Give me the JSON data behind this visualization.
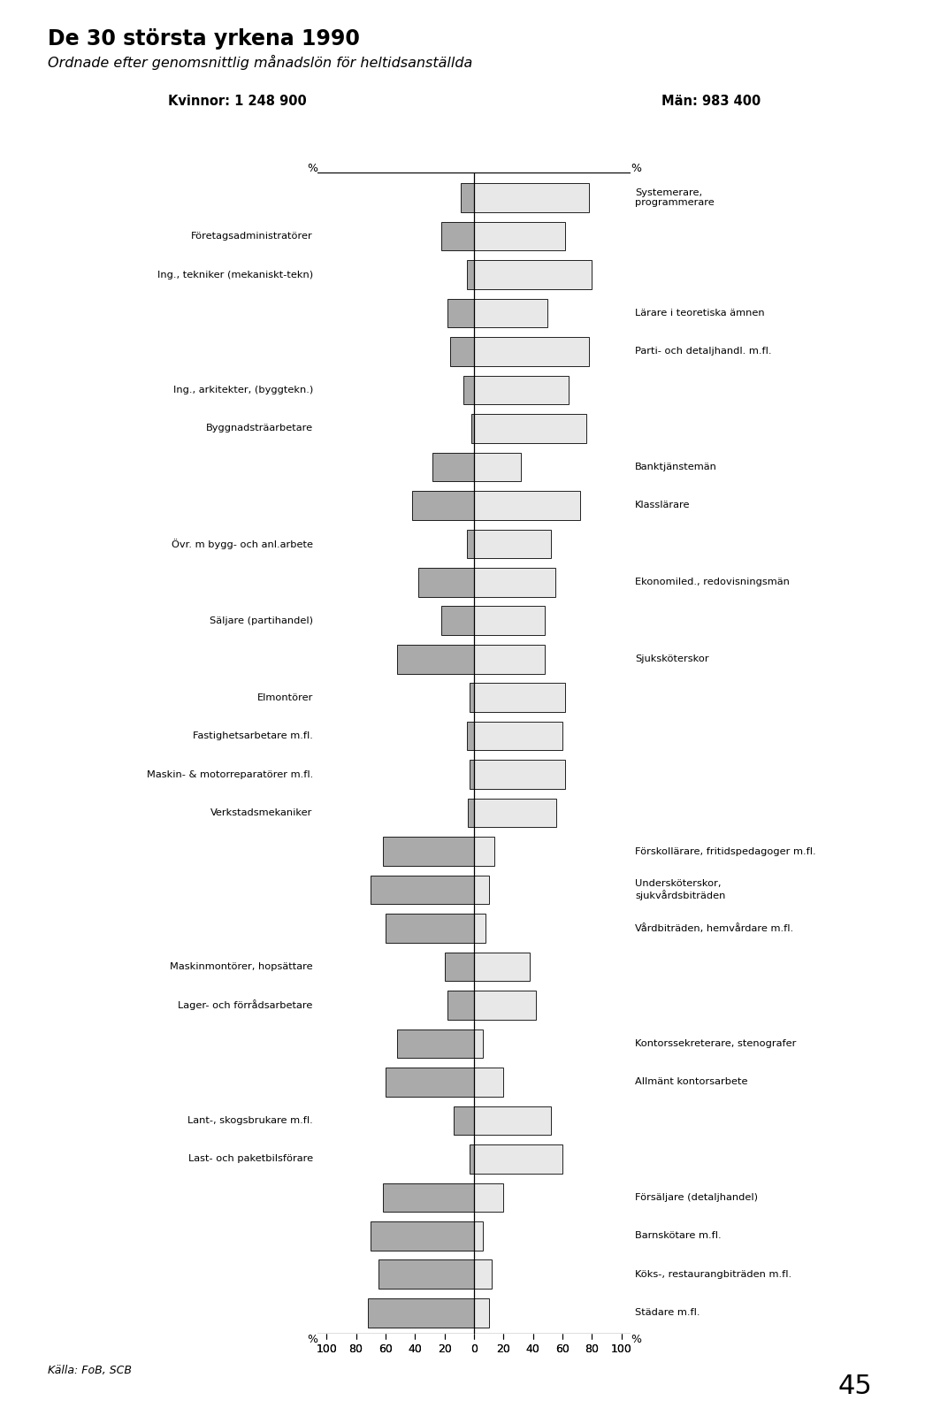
{
  "title": "De 30 största yrkena 1990",
  "subtitle": "Ordnade efter genomsnittlig månadslön för heltidsanställda",
  "women_label": "Kvinnor: 1 248 900",
  "men_label": "Män: 983 400",
  "source": "Källa: FoB, SCB",
  "page_number": "45",
  "bars": [
    {
      "women_label": "",
      "men_label": "Systemerare,\nprogrammerare",
      "women_pct": 9,
      "men_pct": 78,
      "women_color": "#aaaaaa",
      "men_color": "#e8e8e8"
    },
    {
      "women_label": "Företagsadministratörer",
      "men_label": "",
      "women_pct": 22,
      "men_pct": 62,
      "women_color": "#aaaaaa",
      "men_color": "#e8e8e8"
    },
    {
      "women_label": "Ing., tekniker (mekaniskt-tekn)",
      "men_label": "",
      "women_pct": 5,
      "men_pct": 80,
      "women_color": "#aaaaaa",
      "men_color": "#e8e8e8"
    },
    {
      "women_label": "",
      "men_label": "Lärare i teoretiska ämnen",
      "women_pct": 18,
      "men_pct": 50,
      "women_color": "#aaaaaa",
      "men_color": "#e8e8e8"
    },
    {
      "women_label": "",
      "men_label": "Parti- och detaljhandl. m.fl.",
      "women_pct": 16,
      "men_pct": 78,
      "women_color": "#aaaaaa",
      "men_color": "#e8e8e8"
    },
    {
      "women_label": "Ing., arkitekter, (byggtekn.)",
      "men_label": "",
      "women_pct": 7,
      "men_pct": 64,
      "women_color": "#aaaaaa",
      "men_color": "#e8e8e8"
    },
    {
      "women_label": "Byggnadsträarbetare",
      "men_label": "",
      "women_pct": 2,
      "men_pct": 76,
      "women_color": "#aaaaaa",
      "men_color": "#e8e8e8"
    },
    {
      "women_label": "",
      "men_label": "Banktjänstemän",
      "women_pct": 28,
      "men_pct": 32,
      "women_color": "#aaaaaa",
      "men_color": "#e8e8e8"
    },
    {
      "women_label": "",
      "men_label": "Klasslärare",
      "women_pct": 42,
      "men_pct": 72,
      "women_color": "#aaaaaa",
      "men_color": "#e8e8e8"
    },
    {
      "women_label": "Övr. m bygg- och anl.arbete",
      "men_label": "",
      "women_pct": 5,
      "men_pct": 52,
      "women_color": "#aaaaaa",
      "men_color": "#e8e8e8"
    },
    {
      "women_label": "",
      "men_label": "Ekonomiled., redovisningsmän",
      "women_pct": 38,
      "men_pct": 55,
      "women_color": "#aaaaaa",
      "men_color": "#e8e8e8"
    },
    {
      "women_label": "Säljare (partihandel)",
      "men_label": "",
      "women_pct": 22,
      "men_pct": 48,
      "women_color": "#aaaaaa",
      "men_color": "#e8e8e8"
    },
    {
      "women_label": "",
      "men_label": "Sjuksköterskor",
      "women_pct": 52,
      "men_pct": 48,
      "women_color": "#aaaaaa",
      "men_color": "#e8e8e8"
    },
    {
      "women_label": "Elmontörer",
      "men_label": "",
      "women_pct": 3,
      "men_pct": 62,
      "women_color": "#aaaaaa",
      "men_color": "#e8e8e8"
    },
    {
      "women_label": "Fastighetsarbetare m.fl.",
      "men_label": "",
      "women_pct": 5,
      "men_pct": 60,
      "women_color": "#aaaaaa",
      "men_color": "#e8e8e8"
    },
    {
      "women_label": "Maskin- & motorreparatörer m.fl.",
      "men_label": "",
      "women_pct": 3,
      "men_pct": 62,
      "women_color": "#aaaaaa",
      "men_color": "#e8e8e8"
    },
    {
      "women_label": "Verkstadsmekaniker",
      "men_label": "",
      "women_pct": 4,
      "men_pct": 56,
      "women_color": "#aaaaaa",
      "men_color": "#e8e8e8"
    },
    {
      "women_label": "",
      "men_label": "Förskollärare, fritidspedagoger m.fl.",
      "women_pct": 62,
      "men_pct": 14,
      "women_color": "#aaaaaa",
      "men_color": "#e8e8e8"
    },
    {
      "women_label": "",
      "men_label": "Undersköterskor,\nsjukvårdsbiträden",
      "women_pct": 70,
      "men_pct": 10,
      "women_color": "#aaaaaa",
      "men_color": "#e8e8e8"
    },
    {
      "women_label": "",
      "men_label": "Vårdbiträden, hemvårdare m.fl.",
      "women_pct": 60,
      "men_pct": 8,
      "women_color": "#aaaaaa",
      "men_color": "#e8e8e8"
    },
    {
      "women_label": "Maskinmontörer, hopsättare",
      "men_label": "",
      "women_pct": 20,
      "men_pct": 38,
      "women_color": "#aaaaaa",
      "men_color": "#e8e8e8"
    },
    {
      "women_label": "Lager- och förrådsarbetare",
      "men_label": "",
      "women_pct": 18,
      "men_pct": 42,
      "women_color": "#aaaaaa",
      "men_color": "#e8e8e8"
    },
    {
      "women_label": "",
      "men_label": "Kontorssekreterare, stenografer",
      "women_pct": 52,
      "men_pct": 6,
      "women_color": "#aaaaaa",
      "men_color": "#e8e8e8"
    },
    {
      "women_label": "",
      "men_label": "Allmänt kontorsarbete",
      "women_pct": 60,
      "men_pct": 20,
      "women_color": "#aaaaaa",
      "men_color": "#e8e8e8"
    },
    {
      "women_label": "Lant-, skogsbrukare m.fl.",
      "men_label": "",
      "women_pct": 14,
      "men_pct": 52,
      "women_color": "#aaaaaa",
      "men_color": "#e8e8e8"
    },
    {
      "women_label": "Last- och paketbilsförare",
      "men_label": "",
      "women_pct": 3,
      "men_pct": 60,
      "women_color": "#aaaaaa",
      "men_color": "#e8e8e8"
    },
    {
      "women_label": "",
      "men_label": "Försäljare (detaljhandel)",
      "women_pct": 62,
      "men_pct": 20,
      "women_color": "#aaaaaa",
      "men_color": "#e8e8e8"
    },
    {
      "women_label": "",
      "men_label": "Barnskötare m.fl.",
      "women_pct": 70,
      "men_pct": 6,
      "women_color": "#aaaaaa",
      "men_color": "#e8e8e8"
    },
    {
      "women_label": "",
      "men_label": "Köks-, restaurangbiträden m.fl.",
      "women_pct": 65,
      "men_pct": 12,
      "women_color": "#aaaaaa",
      "men_color": "#e8e8e8"
    },
    {
      "women_label": "",
      "men_label": "Städare m.fl.",
      "women_pct": 72,
      "men_pct": 10,
      "women_color": "#aaaaaa",
      "men_color": "#e8e8e8"
    }
  ]
}
